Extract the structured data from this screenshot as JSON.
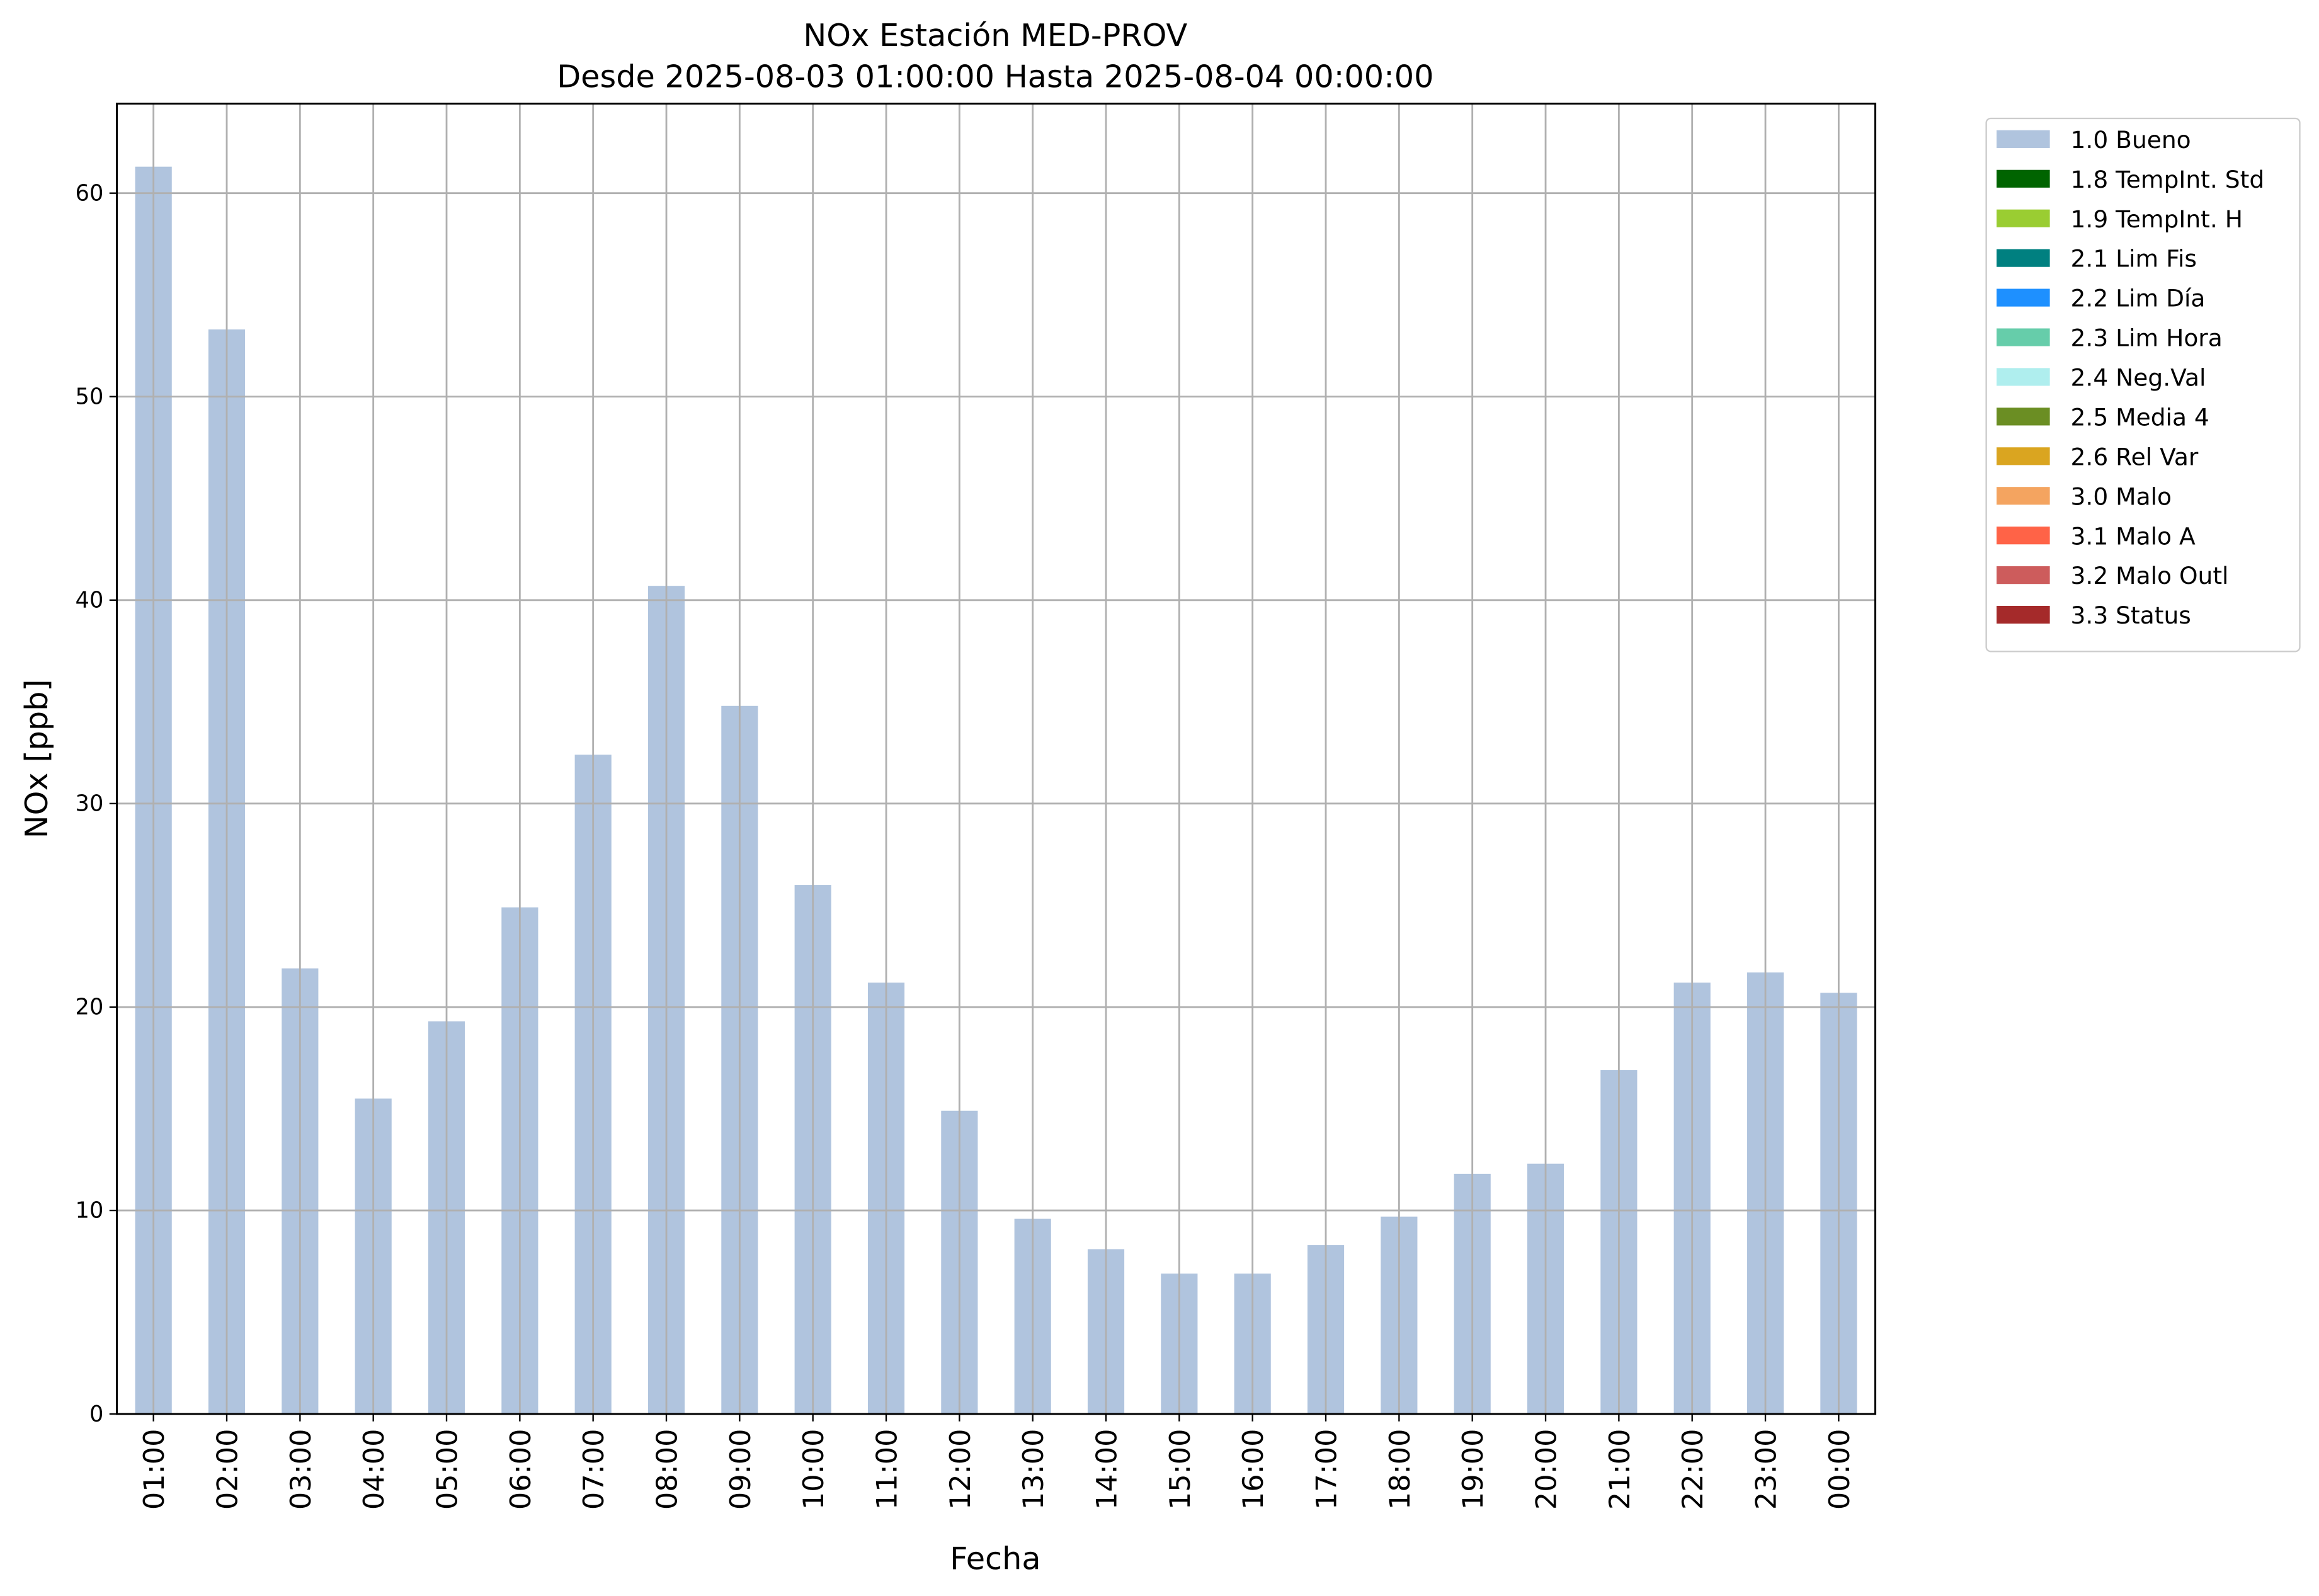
{
  "chart_data": {
    "type": "bar",
    "title": "NOx Estación MED-PROV",
    "subtitle": "Desde 2025-08-03 01:00:00 Hasta 2025-08-04 00:00:00",
    "xlabel": "Fecha",
    "ylabel": "NOx [ppb]",
    "categories": [
      "01:00",
      "02:00",
      "03:00",
      "04:00",
      "05:00",
      "06:00",
      "07:00",
      "08:00",
      "09:00",
      "10:00",
      "11:00",
      "12:00",
      "13:00",
      "14:00",
      "15:00",
      "16:00",
      "17:00",
      "18:00",
      "19:00",
      "20:00",
      "21:00",
      "22:00",
      "23:00",
      "00:00"
    ],
    "series": [
      {
        "name": "1.0 Bueno",
        "color": "#b0c4de",
        "values": [
          61.3,
          53.3,
          21.9,
          15.5,
          19.3,
          24.9,
          32.4,
          40.7,
          34.8,
          26.0,
          21.2,
          14.9,
          9.6,
          8.1,
          6.9,
          6.9,
          8.3,
          9.7,
          11.8,
          12.3,
          16.9,
          21.2,
          21.7,
          20.7
        ]
      },
      {
        "name": "1.8 TempInt. Std",
        "color": "#006400"
      },
      {
        "name": "1.9 TempInt. H",
        "color": "#9acd32"
      },
      {
        "name": "2.1 Lim Fis",
        "color": "#008080"
      },
      {
        "name": "2.2 Lim Día",
        "color": "#1e90ff"
      },
      {
        "name": "2.3 Lim Hora",
        "color": "#66cdaa"
      },
      {
        "name": "2.4 Neg.Val",
        "color": "#afeeee"
      },
      {
        "name": "2.5 Media 4",
        "color": "#6b8e23"
      },
      {
        "name": "2.6 Rel Var",
        "color": "#daa520"
      },
      {
        "name": "3.0 Malo",
        "color": "#f4a460"
      },
      {
        "name": "3.1 Malo A",
        "color": "#ff6347"
      },
      {
        "name": "3.2 Malo Outl",
        "color": "#cd5c5c"
      },
      {
        "name": "3.3 Status",
        "color": "#a52a2a"
      }
    ],
    "ylim": [
      0,
      64.4
    ],
    "yticks": [
      0,
      10,
      20,
      30,
      40,
      50,
      60
    ],
    "grid": true,
    "legend": "outside-right"
  }
}
